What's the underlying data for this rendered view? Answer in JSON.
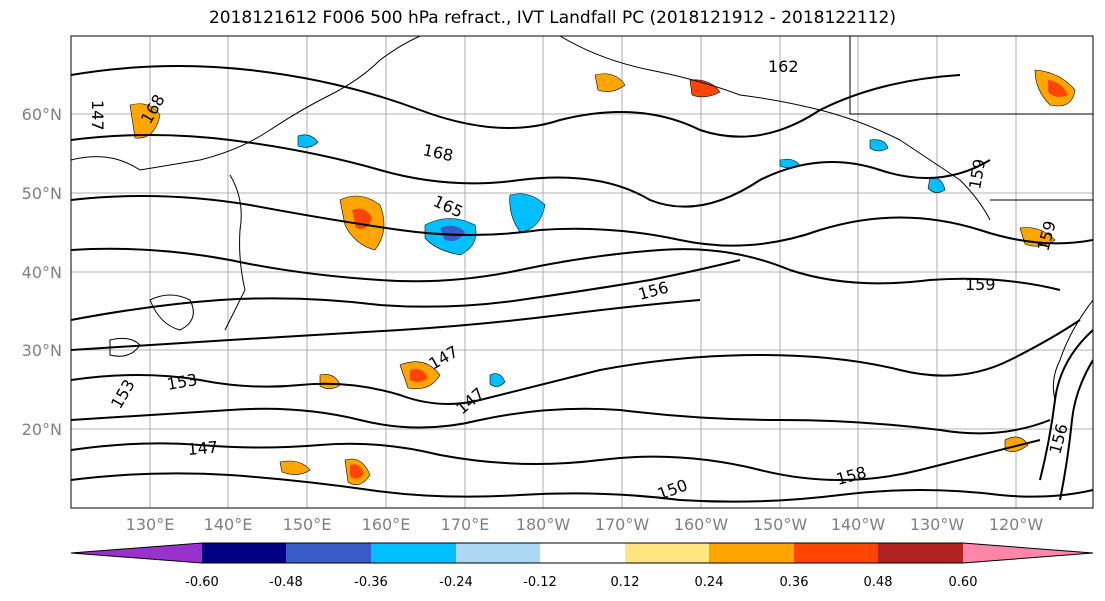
{
  "title": "2018121612 F006 500 hPa refract., IVT Landfall PC (2018121912 - 2018122112)",
  "lat_labels": [
    "60°N",
    "50°N",
    "40°N",
    "30°N",
    "20°N"
  ],
  "lon_labels": [
    "130°E",
    "140°E",
    "150°E",
    "160°E",
    "170°E",
    "180°W",
    "170°W",
    "160°W",
    "150°W",
    "140°W",
    "130°W",
    "120°W"
  ],
  "contour_labels": [
    "168",
    "165",
    "162",
    "168",
    "147",
    "147",
    "153",
    "153",
    "147",
    "156",
    "159",
    "159",
    "159",
    "156",
    "150",
    "147",
    "158"
  ],
  "colorbar": {
    "ticks": [
      "-0.60",
      "-0.48",
      "-0.36",
      "-0.24",
      "-0.12",
      "0.12",
      "0.24",
      "0.36",
      "0.48",
      "0.60"
    ],
    "colors": [
      "#9932cc",
      "#000080",
      "#3a5cc9",
      "#00bfff",
      "#add8f5",
      "#ffffff",
      "#ffe680",
      "#ffa500",
      "#ff4500",
      "#b22222",
      "#ff85a9"
    ]
  }
}
